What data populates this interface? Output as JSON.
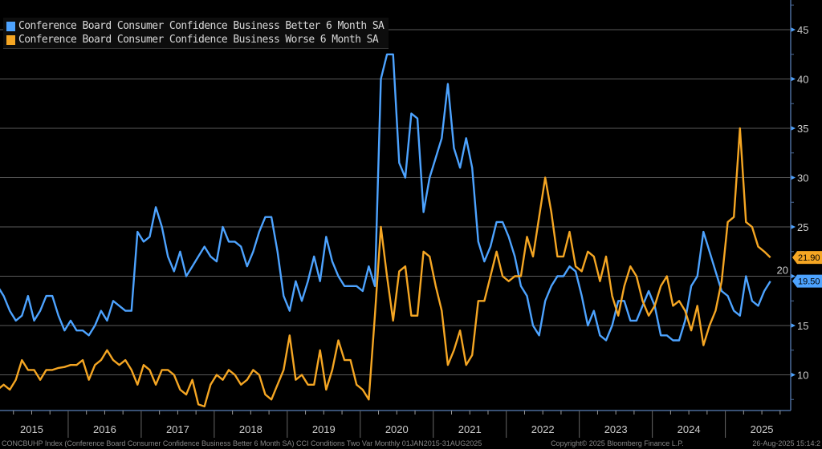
{
  "chart_data": {
    "type": "line",
    "title": "",
    "xlabel": "",
    "ylabel": "",
    "x_start": "2015-01",
    "x_end": "2025-08",
    "frequency": "monthly",
    "x_tick_labels": [
      "2015",
      "2016",
      "2017",
      "2018",
      "2019",
      "2020",
      "2021",
      "2022",
      "2023",
      "2024",
      "2025"
    ],
    "ylim": [
      6,
      47
    ],
    "y_ticks": [
      10,
      15,
      20,
      25,
      30,
      35,
      40,
      45
    ],
    "y_tick_labels": [
      "10",
      "15",
      "20",
      "25",
      "30",
      "35",
      "40",
      "45"
    ],
    "y_axis_side": "right",
    "grid": true,
    "legend_position": "top-left",
    "background": "#000000",
    "series": [
      {
        "name": "Conference Board Consumer Confidence Business Better 6 Month SA",
        "color": "#4da3ff",
        "last_value_label": "19.50",
        "values": [
          19,
          18,
          16.5,
          15.5,
          16,
          18,
          15.5,
          16.5,
          18,
          18,
          16,
          14.5,
          15.5,
          14.5,
          14.5,
          14,
          15,
          16.5,
          15.5,
          17.5,
          17,
          16.5,
          16.5,
          24.5,
          23.5,
          24,
          27,
          25,
          22,
          20.5,
          22.5,
          20,
          21,
          22,
          23,
          22,
          21.5,
          25,
          23.5,
          23.5,
          23,
          21,
          22.5,
          24.5,
          26,
          26,
          22.5,
          18,
          16.5,
          19.5,
          17.5,
          19.5,
          22,
          19.5,
          24,
          21.5,
          20,
          19,
          19,
          19,
          18.5,
          21,
          19,
          40,
          42.5,
          42.5,
          31.5,
          30,
          36.5,
          36,
          26.5,
          30,
          32,
          34,
          39.5,
          33,
          31,
          34,
          31,
          23.5,
          21.5,
          23,
          25.5,
          25.5,
          24,
          22,
          19,
          18,
          15,
          14,
          17.5,
          19,
          20,
          20,
          21,
          20.5,
          18,
          15,
          16.5,
          14,
          13.5,
          15,
          17.5,
          17.5,
          15.5,
          15.5,
          17,
          18.5,
          17,
          14,
          14,
          13.5,
          13.5,
          15.5,
          19,
          20,
          24.5,
          22.5,
          20.5,
          18.5,
          18,
          16.5,
          16,
          20,
          17.5,
          17,
          18.5,
          19.5
        ]
      },
      {
        "name": "Conference Board Consumer Confidence Business Worse 6 Month SA",
        "color": "#f5a623",
        "last_value_label": "21.90",
        "values": [
          8.5,
          9,
          8.5,
          9.5,
          11.5,
          10.5,
          10.5,
          9.5,
          10.5,
          10.5,
          10.7,
          10.8,
          11,
          11,
          11.5,
          9.5,
          11,
          11.5,
          12.5,
          11.5,
          11,
          11.5,
          10.5,
          9,
          11,
          10.5,
          9,
          10.5,
          10.5,
          10,
          8.5,
          8,
          9.5,
          7,
          6.8,
          9,
          10,
          9.5,
          10.5,
          10,
          9,
          9.5,
          10.5,
          10,
          8,
          7.5,
          9,
          10.5,
          14,
          9.5,
          10,
          9,
          9,
          12.5,
          8.5,
          10.5,
          13.5,
          11.5,
          11.5,
          9,
          8.5,
          7.5,
          16,
          25,
          20,
          15.5,
          20.5,
          21,
          16,
          16,
          22.5,
          22,
          19,
          16.5,
          11,
          12.5,
          14.5,
          11,
          12,
          17.5,
          17.5,
          20,
          22.5,
          20,
          19.5,
          20,
          20,
          24,
          22,
          26,
          30,
          26.5,
          22,
          22,
          24.5,
          21,
          20.5,
          22.5,
          22,
          19.5,
          22,
          18,
          16,
          19,
          21,
          20,
          17.5,
          16,
          17,
          19,
          20,
          17,
          17.5,
          16.5,
          14.5,
          17,
          13,
          15,
          16.5,
          19.5,
          25.5,
          26,
          35,
          25.5,
          25,
          23,
          22.5,
          21.9
        ]
      }
    ]
  },
  "footer": {
    "source": "CONCBUHP Index (Conference Board Consumer Confidence Business Better 6 Month SA) CCI Conditions Two Var Monthly 01JAN2015-31AUG2025",
    "copyright": "Copyright© 2025 Bloomberg Finance L.P.",
    "timestamp": "26-Aug-2025 15:14:2"
  }
}
